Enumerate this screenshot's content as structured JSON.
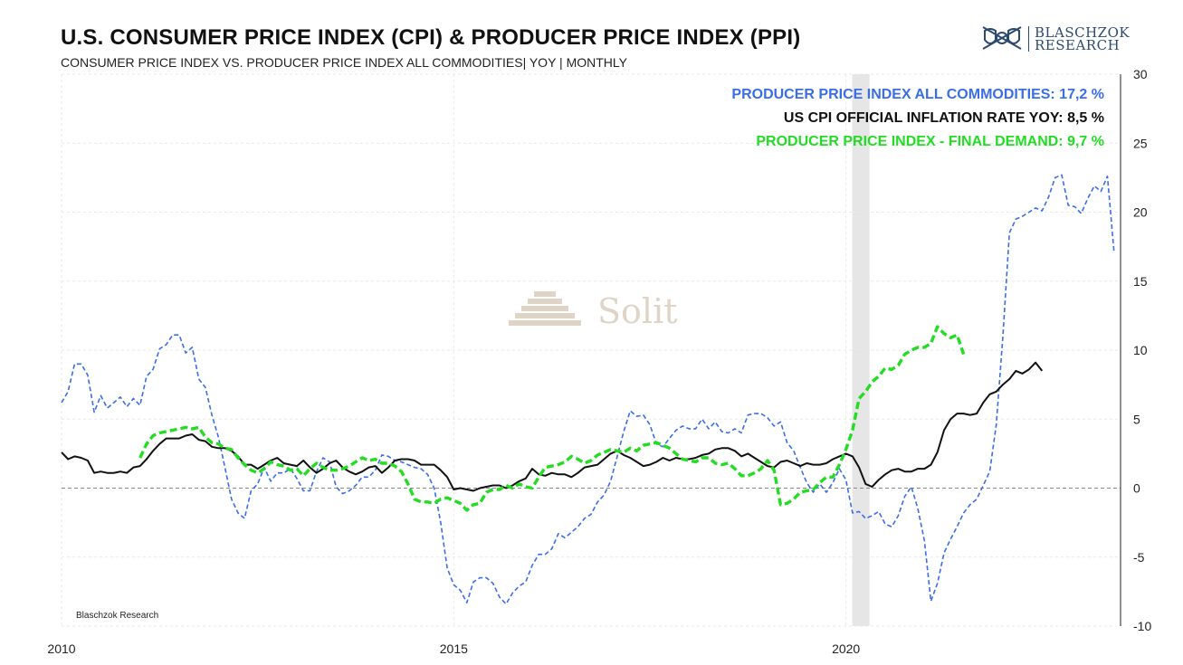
{
  "title": "U.S. CONSUMER PRICE INDEX (CPI) & PRODUCER PRICE INDEX (PPI)",
  "subtitle": "CONSUMER PRICE INDEX VS. PRODUCER PRICE INDEX ALL COMMODITIES| YOY | MONTHLY",
  "logo": {
    "line1": "BLASCHZOK",
    "line2": "RESEARCH",
    "icon": "crossed-swords-shield-icon"
  },
  "watermark": {
    "text": "Solit",
    "icon": "pyramid-icon"
  },
  "source_label": "Blaschzok Research",
  "colors": {
    "ppi_all": "#3a6ee8",
    "cpi": "#111111",
    "ppi_final": "#22dd22",
    "recession": "#e6e6e6",
    "grid": "#e9e9e9"
  },
  "legend": {
    "ppi_all": "PRODUCER PRICE INDEX ALL COMMODITIES: 17,2 %",
    "cpi": "US CPI OFFICIAL INFLATION RATE YOY: 8,5 %",
    "ppi_final": "PRODUCER PRICE INDEX - FINAL DEMAND: 9,7 %"
  },
  "chart_data": {
    "type": "line",
    "title": "U.S. CONSUMER PRICE INDEX (CPI) & PRODUCER PRICE INDEX (PPI)",
    "xlabel": "",
    "ylabel": "",
    "x_range": [
      2010.0,
      2023.5
    ],
    "ylim": [
      -10,
      30
    ],
    "y_ticks": [
      30,
      25,
      20,
      15,
      10,
      5,
      0,
      -5,
      -10
    ],
    "x_ticks": [
      2010,
      2015,
      2020
    ],
    "recession_band": [
      2020.08,
      2020.3
    ],
    "zero_line": 0,
    "series": [
      {
        "name": "PRODUCER PRICE INDEX ALL COMMODITIES",
        "key": "ppi_all",
        "style": "dashed",
        "start": 2010.0,
        "step": 0.08333,
        "values": [
          6.2,
          7.0,
          9.0,
          9.0,
          8.2,
          5.5,
          6.7,
          5.8,
          6.2,
          6.6,
          5.9,
          6.5,
          6.0,
          8.1,
          8.6,
          10.1,
          10.4,
          11.1,
          11.1,
          9.8,
          10.2,
          7.9,
          7.3,
          5.3,
          3.7,
          1.5,
          -0.8,
          -1.8,
          -2.2,
          -0.2,
          0.3,
          1.5,
          0.5,
          1.1,
          1.1,
          1.4,
          0.7,
          -0.2,
          -0.2,
          1.2,
          2.2,
          1.9,
          0.1,
          -0.4,
          -0.2,
          0.2,
          0.8,
          0.8,
          1.3,
          2.4,
          2.3,
          2.0,
          1.9,
          1.7,
          1.5,
          1.4,
          1.0,
          0.0,
          -2.5,
          -5.8,
          -7.0,
          -7.4,
          -8.3,
          -6.8,
          -6.5,
          -6.5,
          -6.9,
          -7.9,
          -8.4,
          -7.6,
          -7.1,
          -6.8,
          -5.6,
          -4.8,
          -4.8,
          -4.4,
          -3.3,
          -3.6,
          -3.2,
          -2.8,
          -2.2,
          -1.9,
          -1.0,
          -0.5,
          0.5,
          2.3,
          4.1,
          5.6,
          5.2,
          5.3,
          4.6,
          3.2,
          3.0,
          3.6,
          4.2,
          4.5,
          4.3,
          4.3,
          5.0,
          4.3,
          4.8,
          4.1,
          4.0,
          4.3,
          4.0,
          5.3,
          5.4,
          5.4,
          5.1,
          4.5,
          4.8,
          3.3,
          2.7,
          1.5,
          0.4,
          -0.3,
          0.3,
          -0.3,
          0.4,
          1.4,
          0.6,
          -1.8,
          -1.7,
          -2.2,
          -2.0,
          -1.7,
          -2.6,
          -2.8,
          -2.0,
          -0.6,
          0.1,
          -1.5,
          -3.8,
          -8.2,
          -6.9,
          -4.7,
          -3.7,
          -2.8,
          -1.8,
          -1.2,
          -0.8,
          0.2,
          1.2,
          4.6,
          11.0,
          18.5,
          19.5,
          19.7,
          20.0,
          20.3,
          20.1,
          21.1,
          22.5,
          22.7,
          20.5,
          20.4,
          19.9,
          21.0,
          21.9,
          21.5,
          22.6,
          17.2
        ]
      },
      {
        "name": "US CPI OFFICIAL INFLATION RATE YOY",
        "key": "cpi",
        "style": "solid",
        "start": 2010.0,
        "step": 0.08333,
        "values": [
          2.6,
          2.1,
          2.3,
          2.2,
          2.0,
          1.1,
          1.2,
          1.1,
          1.1,
          1.2,
          1.1,
          1.5,
          1.6,
          2.1,
          2.7,
          3.2,
          3.6,
          3.6,
          3.6,
          3.8,
          3.9,
          3.5,
          3.4,
          3.0,
          2.9,
          2.9,
          2.7,
          2.3,
          1.7,
          1.7,
          1.4,
          1.7,
          2.0,
          2.2,
          1.8,
          1.7,
          1.6,
          2.0,
          1.5,
          1.1,
          1.4,
          1.8,
          2.0,
          1.5,
          1.2,
          1.0,
          1.2,
          1.5,
          1.6,
          1.1,
          1.5,
          2.0,
          2.1,
          2.1,
          2.0,
          1.7,
          1.7,
          1.7,
          1.3,
          0.8,
          -0.1,
          0.0,
          -0.1,
          -0.2,
          0.0,
          0.1,
          0.2,
          0.2,
          0.0,
          0.2,
          0.5,
          0.7,
          1.4,
          1.0,
          0.9,
          1.1,
          1.0,
          1.0,
          0.8,
          1.1,
          1.5,
          1.6,
          1.7,
          2.1,
          2.5,
          2.7,
          2.4,
          2.2,
          1.9,
          1.6,
          1.7,
          1.9,
          2.2,
          2.0,
          2.2,
          2.1,
          2.1,
          2.2,
          2.4,
          2.5,
          2.8,
          2.9,
          2.9,
          2.7,
          2.3,
          2.5,
          2.2,
          1.9,
          1.6,
          1.5,
          1.9,
          2.0,
          1.8,
          1.6,
          1.8,
          1.7,
          1.7,
          1.8,
          2.1,
          2.3,
          2.5,
          2.3,
          1.5,
          0.3,
          0.1,
          0.6,
          1.0,
          1.3,
          1.4,
          1.2,
          1.2,
          1.4,
          1.4,
          1.7,
          2.6,
          4.2,
          5.0,
          5.4,
          5.4,
          5.3,
          5.4,
          6.2,
          6.8,
          7.0,
          7.5,
          7.9,
          8.5,
          8.3,
          8.6,
          9.1,
          8.5
        ]
      },
      {
        "name": "PRODUCER PRICE INDEX - FINAL DEMAND",
        "key": "ppi_final",
        "style": "dashed",
        "start": 2011.0,
        "step": 0.08333,
        "values": [
          2.2,
          3.2,
          3.8,
          4.0,
          4.1,
          4.2,
          4.3,
          4.4,
          4.3,
          4.4,
          3.7,
          3.3,
          3.2,
          2.9,
          2.8,
          2.2,
          1.7,
          1.3,
          1.1,
          1.4,
          1.9,
          1.7,
          1.6,
          1.3,
          1.4,
          0.9,
          1.4,
          1.8,
          1.5,
          1.3,
          1.3,
          1.4,
          1.6,
          1.9,
          2.2,
          2.0,
          2.1,
          1.8,
          1.8,
          1.6,
          1.2,
          0.3,
          -0.8,
          -1.0,
          -1.0,
          -1.1,
          -0.8,
          -0.7,
          -0.9,
          -1.1,
          -1.6,
          -1.2,
          -1.1,
          -0.3,
          -0.1,
          -0.1,
          0.2,
          0.0,
          0.3,
          0.1,
          0.0,
          0.8,
          1.5,
          1.6,
          1.7,
          1.9,
          2.3,
          2.1,
          1.8,
          2.0,
          2.4,
          2.6,
          2.8,
          2.7,
          2.6,
          2.9,
          2.7,
          3.1,
          3.2,
          3.3,
          3.1,
          2.9,
          2.5,
          2.1,
          2.0,
          1.9,
          2.2,
          2.2,
          1.8,
          1.7,
          1.8,
          1.4,
          0.9,
          0.9,
          1.1,
          1.4,
          2.0,
          1.3,
          -1.2,
          -1.1,
          -0.8,
          -0.3,
          -0.2,
          -0.1,
          0.4,
          0.8,
          0.8,
          1.7,
          2.8,
          4.2,
          6.5,
          7.0,
          7.7,
          8.1,
          8.7,
          8.6,
          8.9,
          9.7,
          10.0,
          10.2,
          10.2,
          10.5,
          11.7,
          11.2,
          10.9,
          11.1,
          9.7
        ]
      }
    ]
  }
}
